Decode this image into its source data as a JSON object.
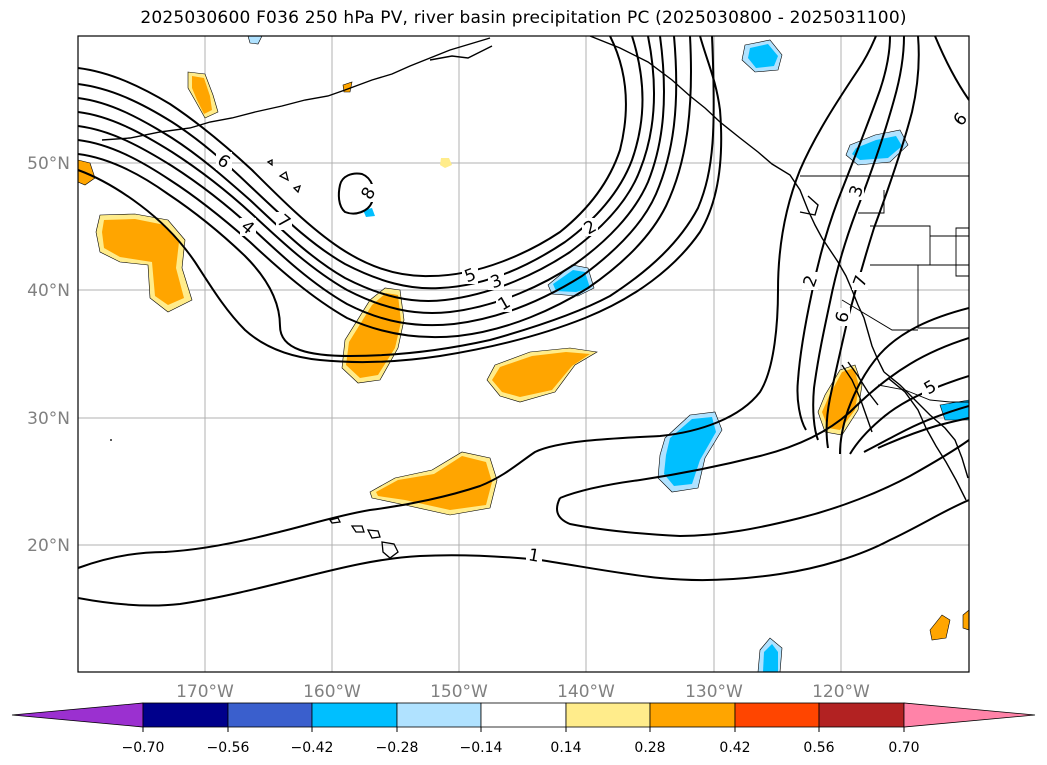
{
  "title": "2025030600 F036 250 hPa PV, river basin precipitation PC (2025030800 - 2025031100)",
  "map": {
    "lon_ticks": [
      "170°W",
      "160°W",
      "150°W",
      "140°W",
      "130°W",
      "120°W"
    ],
    "lat_ticks": [
      "50°N",
      "40°N",
      "30°N",
      "20°N"
    ],
    "contour_labels": [
      "6",
      "4",
      "7",
      "8",
      "5",
      "3",
      "1",
      "2",
      "2",
      "3",
      "7",
      "6",
      "5",
      "1",
      "6"
    ]
  },
  "colorbar": {
    "ticks": [
      "−0.70",
      "−0.56",
      "−0.42",
      "−0.28",
      "−0.14",
      "0.14",
      "0.28",
      "0.42",
      "0.56",
      "0.70"
    ],
    "colors": [
      "#9b30d0",
      "#00008b",
      "#3a5fcd",
      "#00bfff",
      "#b0e2ff",
      "#ffffff",
      "#ffec8b",
      "#ffa500",
      "#ff4500",
      "#b22222",
      "#ff83a8"
    ]
  }
}
